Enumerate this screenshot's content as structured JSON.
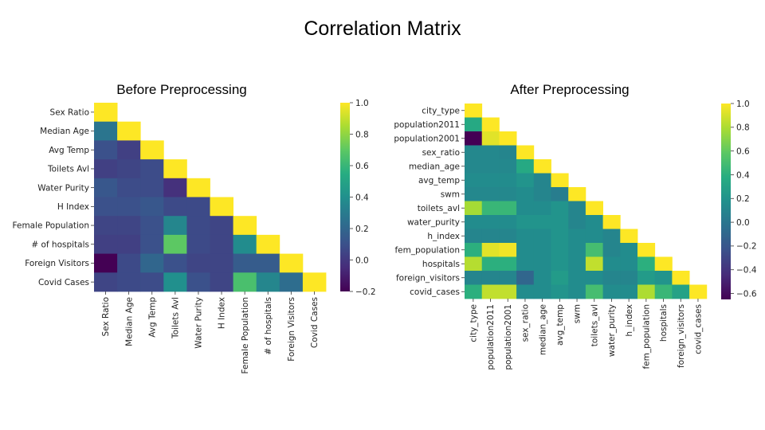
{
  "title": "Correlation Matrix",
  "colors": {
    "background": "#ffffff",
    "colormap": "viridis"
  },
  "chart_data": [
    {
      "type": "heatmap",
      "title": "Before Preprocessing",
      "labels": [
        "Sex Ratio",
        "Median Age",
        "Avg Temp",
        "Toilets Avl",
        "Water Purity",
        "H Index",
        "Female Population",
        "# of hospitals",
        "Foreign Visitors",
        "Covid Cases"
      ],
      "mask": "upper-triangle",
      "values": [
        [
          1.0
        ],
        [
          0.27,
          1.0
        ],
        [
          0.1,
          0.03,
          1.0
        ],
        [
          0.03,
          0.05,
          0.08,
          1.0
        ],
        [
          0.13,
          0.08,
          0.08,
          -0.03,
          1.0
        ],
        [
          0.1,
          0.1,
          0.13,
          0.07,
          0.07,
          1.0
        ],
        [
          0.05,
          0.05,
          0.1,
          0.35,
          0.07,
          0.05,
          1.0
        ],
        [
          0.03,
          0.03,
          0.1,
          0.7,
          0.07,
          0.05,
          0.38,
          1.0
        ],
        [
          -0.2,
          0.07,
          0.2,
          0.1,
          0.05,
          0.05,
          0.15,
          0.15,
          1.0
        ],
        [
          0.05,
          0.07,
          0.08,
          0.4,
          0.1,
          0.05,
          0.65,
          0.35,
          0.23,
          1.0
        ]
      ],
      "colorbar": {
        "min": -0.2,
        "max": 1.0,
        "ticks": [
          "1.0",
          "0.8",
          "0.6",
          "0.4",
          "0.2",
          "0.0",
          "−0.2"
        ],
        "tick_values": [
          1.0,
          0.8,
          0.6,
          0.4,
          0.2,
          0.0,
          -0.2
        ]
      }
    },
    {
      "type": "heatmap",
      "title": "After Preprocessing",
      "labels": [
        "city_type",
        "population2011",
        "population2001",
        "sex_ratio",
        "median_age",
        "avg_temp",
        "swm",
        "toilets_avl",
        "water_purity",
        "h_index",
        "fem_population",
        "hospitals",
        "foreign_visitors",
        "covid_cases"
      ],
      "mask": "upper-triangle",
      "values": [
        [
          1.0
        ],
        [
          0.35,
          1.0
        ],
        [
          -0.65,
          0.93,
          1.0
        ],
        [
          0.12,
          0.12,
          0.1,
          1.0
        ],
        [
          0.12,
          0.12,
          0.12,
          0.35,
          1.0
        ],
        [
          0.15,
          0.15,
          0.15,
          0.2,
          0.1,
          1.0
        ],
        [
          0.12,
          0.12,
          0.12,
          0.15,
          0.1,
          0.05,
          1.0
        ],
        [
          0.78,
          0.45,
          0.45,
          0.15,
          0.15,
          0.2,
          0.1,
          1.0
        ],
        [
          0.15,
          0.15,
          0.15,
          0.2,
          0.2,
          0.2,
          0.1,
          0.15,
          1.0
        ],
        [
          0.1,
          0.1,
          0.1,
          0.15,
          0.15,
          0.2,
          0.15,
          0.15,
          0.1,
          1.0
        ],
        [
          0.4,
          0.93,
          0.97,
          0.15,
          0.15,
          0.2,
          0.15,
          0.5,
          0.1,
          0.15,
          1.0
        ],
        [
          0.82,
          0.4,
          0.4,
          0.15,
          0.15,
          0.2,
          0.15,
          0.85,
          0.15,
          0.15,
          0.4,
          1.0
        ],
        [
          0.1,
          0.1,
          0.1,
          -0.1,
          0.15,
          0.25,
          0.15,
          0.15,
          0.1,
          0.1,
          0.25,
          0.2,
          1.0
        ],
        [
          0.4,
          0.85,
          0.85,
          0.15,
          0.15,
          0.2,
          0.15,
          0.5,
          0.15,
          0.15,
          0.8,
          0.45,
          0.3,
          1.0
        ]
      ],
      "colorbar": {
        "min": -0.65,
        "max": 1.0,
        "ticks": [
          "1.0",
          "0.8",
          "0.6",
          "0.4",
          "0.2",
          "0.0",
          "−0.2",
          "−0.4",
          "−0.6"
        ],
        "tick_values": [
          1.0,
          0.8,
          0.6,
          0.4,
          0.2,
          0.0,
          -0.2,
          -0.4,
          -0.6
        ]
      }
    }
  ]
}
